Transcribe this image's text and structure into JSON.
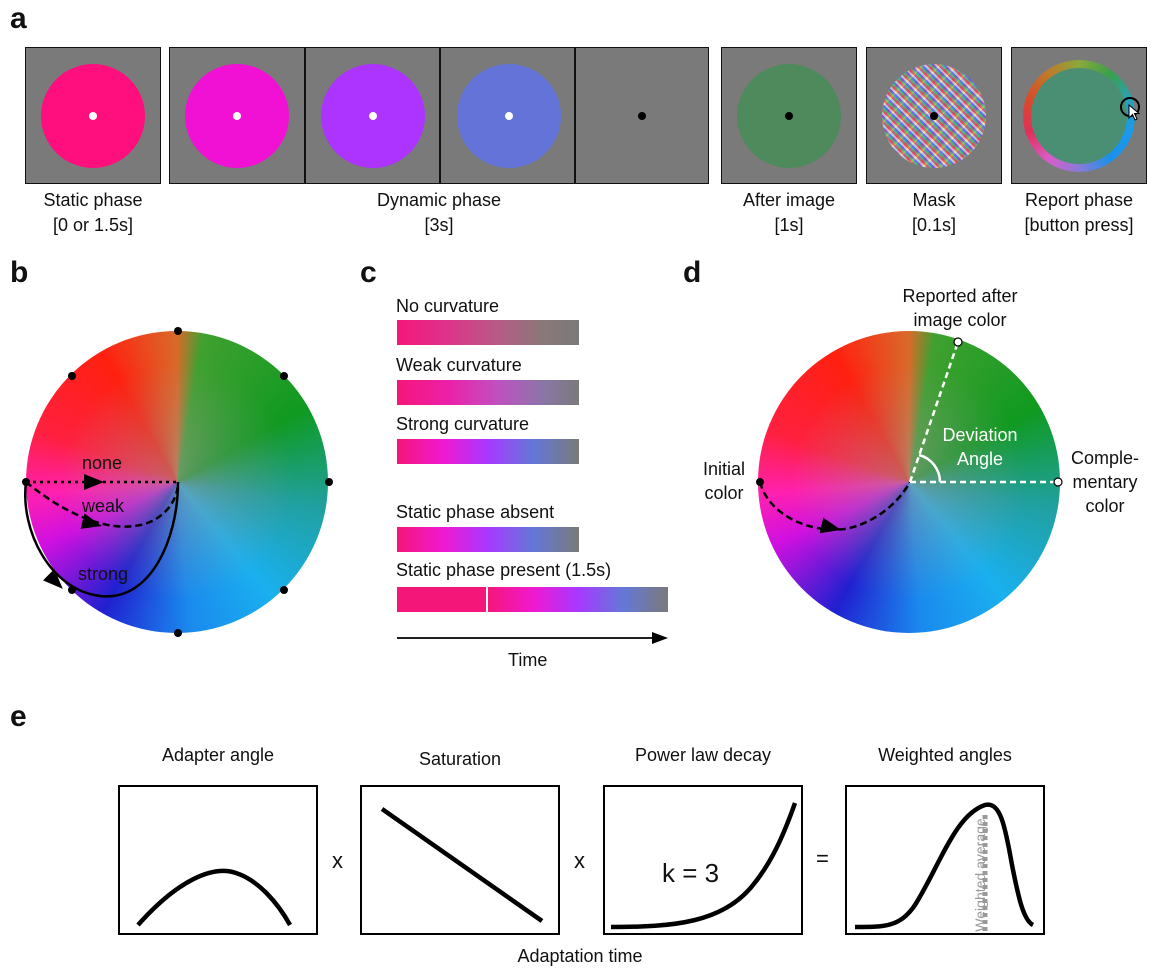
{
  "panel_labels": {
    "a": "a",
    "b": "b",
    "c": "c",
    "d": "d",
    "e": "e"
  },
  "panel_a": {
    "static_title": "Static phase",
    "static_time": "[0 or 1.5s]",
    "dynamic_title": "Dynamic phase",
    "dynamic_time": "[3s]",
    "after_title": "After image",
    "after_time": "[1s]",
    "mask_title": "Mask",
    "mask_time": "[0.1s]",
    "report_title": "Report phase",
    "report_time": "[button press]",
    "colors": {
      "static": "#ff0f7d",
      "dynamic_1": "#f011d4",
      "dynamic_2": "#ad33ff",
      "dynamic_3": "#6473d8",
      "after_image": "#4f8a5c",
      "report": "#4a8e74",
      "frame": "#7a7a7a"
    }
  },
  "panel_b": {
    "none": "none",
    "weak": "weak",
    "strong": "strong"
  },
  "panel_c": {
    "no_curvature": "No curvature",
    "weak_curvature": "Weak curvature",
    "strong_curvature": "Strong curvature",
    "static_absent": "Static phase absent",
    "static_present": "Static phase present (1.5s)",
    "time": "Time"
  },
  "panel_d": {
    "reported_1": "Reported after",
    "reported_2": "image color",
    "initial_1": "Initial",
    "initial_2": "color",
    "comp_1": "Comple-",
    "comp_2": "mentary",
    "comp_3": "color",
    "deviation_1": "Deviation",
    "deviation_2": "Angle"
  },
  "panel_e": {
    "adapter_angle": "Adapter angle",
    "saturation": "Saturation",
    "power_law": "Power law decay",
    "weighted_angles": "Weighted angles",
    "times_1": "x",
    "times_2": "x",
    "equals": "=",
    "k_label": "k = 3",
    "weighted_average": "Weighted average",
    "xlabel": "Adaptation time"
  }
}
